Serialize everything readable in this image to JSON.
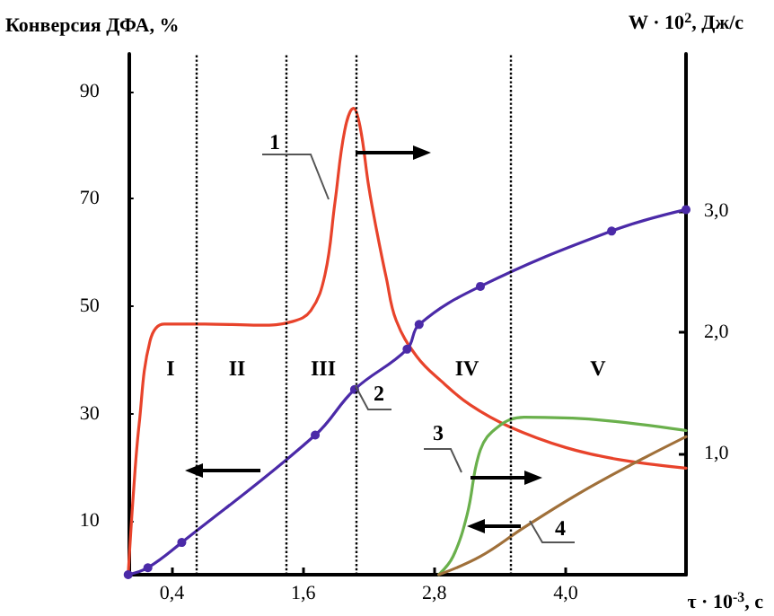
{
  "chart_data": {
    "type": "line",
    "ylabel": "Конверсия ДФА, %",
    "y2label": "W · 10$^{2}$, Дж/с",
    "xlabel": "τ · 10$^{-3}$, с",
    "xlim": [
      0,
      5.1
    ],
    "xticks": [
      {
        "value": 0.4,
        "label": "0,4"
      },
      {
        "value": 1.6,
        "label": "1,6"
      },
      {
        "value": 2.8,
        "label": "2,8"
      },
      {
        "value": 4.0,
        "label": "4,0"
      }
    ],
    "ylim": [
      0,
      97
    ],
    "yticks": [
      10,
      30,
      50,
      70,
      90
    ],
    "y2lim": [
      0,
      4.3
    ],
    "y2ticks": [
      {
        "value": 1,
        "label": "1,0"
      },
      {
        "value": 2,
        "label": "2,0"
      },
      {
        "value": 3,
        "label": "3,0"
      }
    ],
    "grid": false,
    "line_style": "solid",
    "series": [
      {
        "color": "#e8432b",
        "axis": "y2",
        "marker": "none",
        "x": [
          0,
          0.05,
          0.1,
          0.2,
          0.33,
          0.7,
          1.2,
          1.5,
          1.67,
          1.8,
          1.89,
          1.98,
          2.06,
          2.12,
          2.2,
          2.27,
          2.36,
          2.45,
          2.64,
          2.86,
          3.13,
          3.49,
          4.0,
          4.49,
          5.1
        ],
        "values": [
          0,
          0.7,
          1.24,
          1.93,
          2.07,
          2.07,
          2.06,
          2.09,
          2.18,
          2.48,
          3.07,
          3.67,
          3.85,
          3.7,
          3.2,
          2.85,
          2.45,
          2.1,
          1.8,
          1.6,
          1.4,
          1.22,
          1.05,
          0.95,
          0.88
        ]
      },
      {
        "color": "#4b2aa8",
        "axis": "y",
        "marker": "circle",
        "x": [
          0,
          0.18,
          0.49,
          1.71,
          2.07,
          2.55,
          2.66,
          3.22,
          4.42,
          5.1
        ],
        "values": [
          0,
          1.3,
          6,
          26,
          34.5,
          42,
          46.6,
          53.7,
          64,
          68
        ]
      },
      {
        "color": "#6ab04c",
        "axis": "y2",
        "marker": "none",
        "x": [
          2.84,
          2.97,
          3.1,
          3.22,
          3.38,
          3.62,
          4.28,
          5.1
        ],
        "values": [
          0,
          0.15,
          0.5,
          1.03,
          1.22,
          1.3,
          1.28,
          1.19
        ]
      },
      {
        "color": "#a0703a",
        "axis": "y",
        "marker": "none",
        "x": [
          2.84,
          3.22,
          3.62,
          4.11,
          4.6,
          5.1
        ],
        "values": [
          0,
          3.4,
          8.8,
          15,
          20.5,
          25.7
        ]
      }
    ],
    "ref_lines": [
      {
        "axis": "x",
        "value": 0.62,
        "line_style": "dotted"
      },
      {
        "axis": "x",
        "value": 1.45,
        "line_style": "dotted"
      },
      {
        "axis": "x",
        "value": 2.09,
        "line_style": "dotted"
      },
      {
        "axis": "x",
        "value": 3.5,
        "line_style": "dotted"
      }
    ],
    "annotations": [
      "I",
      "II",
      "III",
      "IV",
      "V",
      "1",
      "2",
      "3",
      "4"
    ]
  }
}
